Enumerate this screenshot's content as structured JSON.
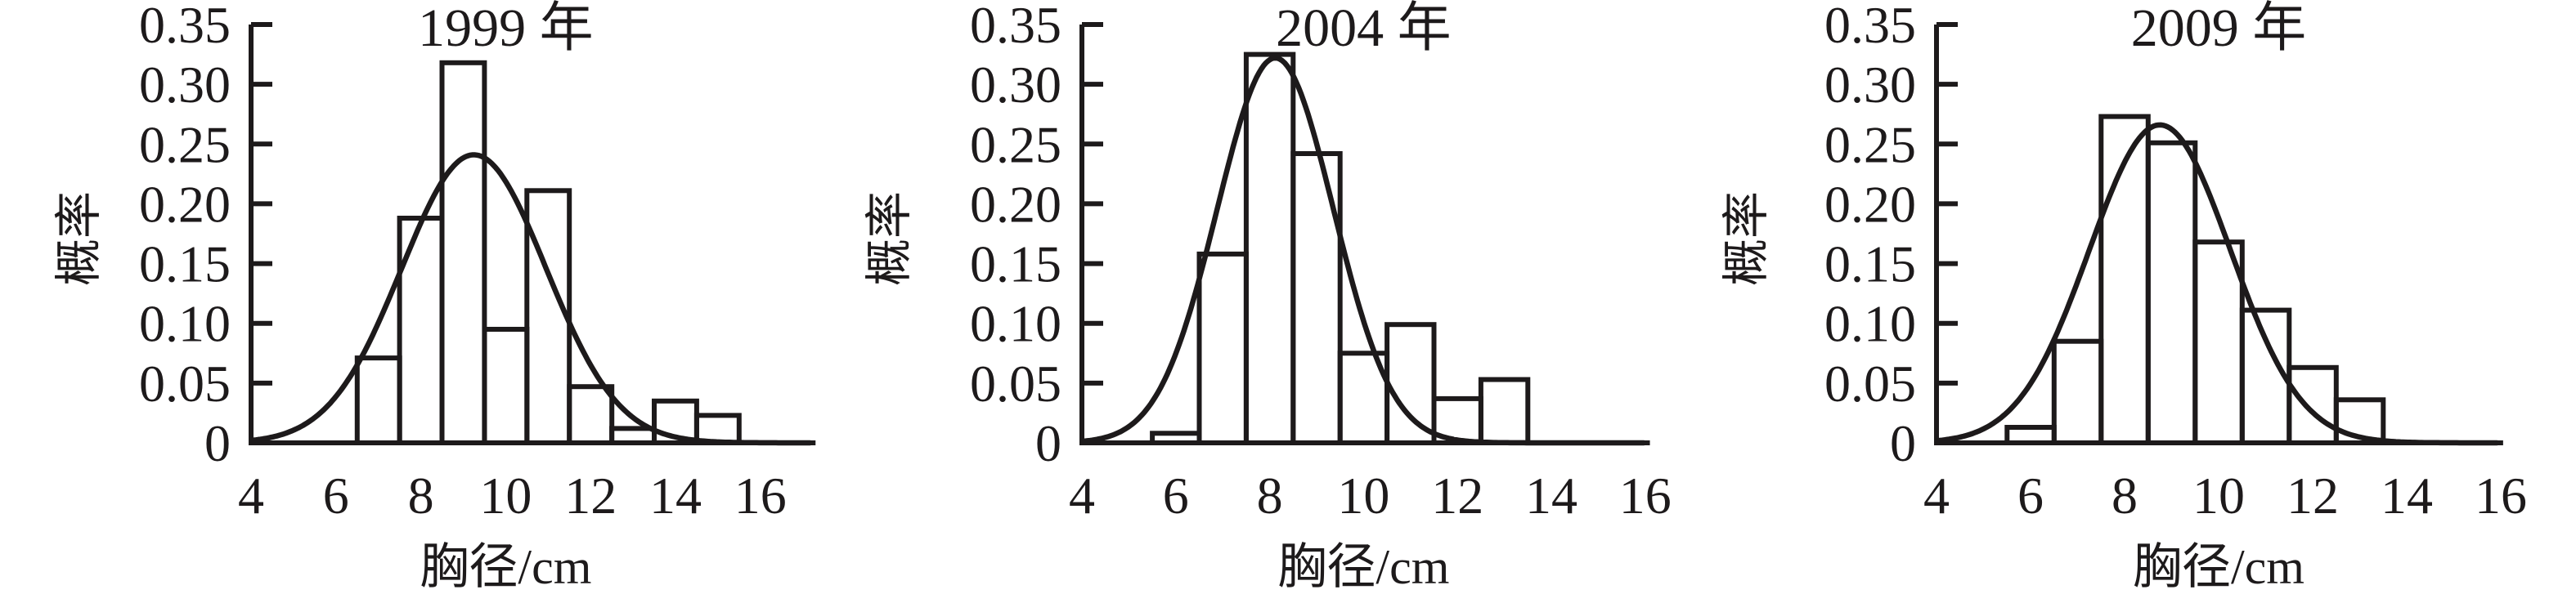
{
  "page": {
    "background": "#ffffff",
    "ink_color": "#1d1a1b",
    "description_visible_text_only": true
  },
  "chart_data": [
    {
      "type": "bar",
      "subtype": "probability-histogram-with-fitted-normal-curve",
      "title": "1999 年",
      "xlabel": "胸径/cm",
      "ylabel": "概率",
      "xlim": [
        4,
        17.3
      ],
      "ylim": [
        0,
        0.35
      ],
      "grid": false,
      "legend": null,
      "xticks": [
        4,
        6,
        8,
        10,
        12,
        14,
        16
      ],
      "ytick_values": [
        0,
        0.05,
        0.1,
        0.15,
        0.2,
        0.25,
        0.3,
        0.35
      ],
      "ytick_labels": [
        "0",
        "0.05",
        "0.10",
        "0.15",
        "0.20",
        "0.25",
        "0.30",
        "0.35"
      ],
      "bin_width_cm": 1,
      "bars": [
        {
          "x0": 6.5,
          "x1": 7.5,
          "p": 0.071
        },
        {
          "x0": 7.5,
          "x1": 8.5,
          "p": 0.188
        },
        {
          "x0": 8.5,
          "x1": 9.5,
          "p": 0.318
        },
        {
          "x0": 9.5,
          "x1": 10.5,
          "p": 0.095
        },
        {
          "x0": 10.5,
          "x1": 11.5,
          "p": 0.211
        },
        {
          "x0": 11.5,
          "x1": 12.5,
          "p": 0.047
        },
        {
          "x0": 12.5,
          "x1": 13.5,
          "p": 0.012
        },
        {
          "x0": 13.5,
          "x1": 14.5,
          "p": 0.035
        },
        {
          "x0": 14.5,
          "x1": 15.5,
          "p": 0.023
        }
      ],
      "fitted_curve": {
        "shape": "normal",
        "mu": 9.25,
        "sigma": 1.7,
        "peak": 0.241
      }
    },
    {
      "type": "bar",
      "subtype": "probability-histogram-with-fitted-normal-curve",
      "title": "2004 年",
      "xlabel": "胸径/cm",
      "ylabel": "概率",
      "xlim": [
        4,
        16.1
      ],
      "ylim": [
        0,
        0.35
      ],
      "grid": false,
      "legend": null,
      "xticks": [
        4,
        6,
        8,
        10,
        12,
        14,
        16
      ],
      "ytick_values": [
        0,
        0.05,
        0.1,
        0.15,
        0.2,
        0.25,
        0.3,
        0.35
      ],
      "ytick_labels": [
        "0",
        "0.05",
        "0.10",
        "0.15",
        "0.20",
        "0.25",
        "0.30",
        "0.35"
      ],
      "bin_width_cm": 1,
      "bars": [
        {
          "x0": 5.5,
          "x1": 6.5,
          "p": 0.008
        },
        {
          "x0": 6.5,
          "x1": 7.5,
          "p": 0.158
        },
        {
          "x0": 7.5,
          "x1": 8.5,
          "p": 0.325
        },
        {
          "x0": 8.5,
          "x1": 9.5,
          "p": 0.242
        },
        {
          "x0": 9.5,
          "x1": 10.5,
          "p": 0.075
        },
        {
          "x0": 10.5,
          "x1": 11.5,
          "p": 0.099
        },
        {
          "x0": 11.5,
          "x1": 12.5,
          "p": 0.037
        },
        {
          "x0": 12.5,
          "x1": 13.5,
          "p": 0.053
        }
      ],
      "fitted_curve": {
        "shape": "normal",
        "mu": 8.12,
        "sigma": 1.24,
        "peak": 0.322
      }
    },
    {
      "type": "bar",
      "subtype": "probability-histogram-with-fitted-normal-curve",
      "title": "2009 年",
      "xlabel": "胸径/cm",
      "ylabel": "概率",
      "xlim": [
        4,
        16.05
      ],
      "ylim": [
        0,
        0.35
      ],
      "grid": false,
      "legend": null,
      "xticks": [
        4,
        6,
        8,
        10,
        12,
        14,
        16
      ],
      "ytick_values": [
        0,
        0.05,
        0.1,
        0.15,
        0.2,
        0.25,
        0.3,
        0.35
      ],
      "ytick_labels": [
        "0",
        "0.05",
        "0.10",
        "0.15",
        "0.20",
        "0.25",
        "0.30",
        "0.35"
      ],
      "bin_width_cm": 1,
      "bars": [
        {
          "x0": 5.5,
          "x1": 6.5,
          "p": 0.013
        },
        {
          "x0": 6.5,
          "x1": 7.5,
          "p": 0.085
        },
        {
          "x0": 7.5,
          "x1": 8.5,
          "p": 0.273
        },
        {
          "x0": 8.5,
          "x1": 9.5,
          "p": 0.251
        },
        {
          "x0": 9.5,
          "x1": 10.5,
          "p": 0.168
        },
        {
          "x0": 10.5,
          "x1": 11.5,
          "p": 0.111
        },
        {
          "x0": 11.5,
          "x1": 12.5,
          "p": 0.063
        },
        {
          "x0": 12.5,
          "x1": 13.5,
          "p": 0.036
        }
      ],
      "fitted_curve": {
        "shape": "normal",
        "mu": 8.75,
        "sigma": 1.5,
        "peak": 0.266
      }
    }
  ]
}
